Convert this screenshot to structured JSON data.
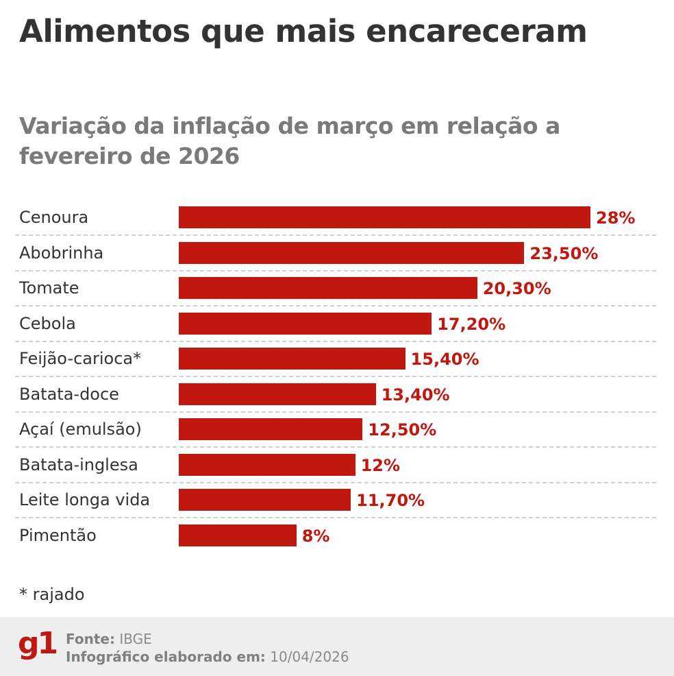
{
  "chart_data": {
    "type": "bar",
    "orientation": "horizontal",
    "title": "Alimentos que mais encareceram",
    "subtitle": "Variação da inflação de março em relação a fevereiro de 2026",
    "categories": [
      "Cenoura",
      "Abobrinha",
      "Tomate",
      "Cebola",
      "Feijão-carioca*",
      "Batata-doce",
      "Açaí (emulsão)",
      "Batata-inglesa",
      "Leite longa vida",
      "Pimentão"
    ],
    "values": [
      28,
      23.5,
      20.3,
      17.2,
      15.4,
      13.4,
      12.5,
      12,
      11.7,
      8
    ],
    "data_labels": [
      "28%",
      "23,50%",
      "20,30%",
      "17,20%",
      "15,40%",
      "13,40%",
      "12,50%",
      "12%",
      "11,70%",
      "8%"
    ],
    "unit": "%",
    "xlim": [
      0,
      28
    ],
    "grid": false,
    "bar_color": "#c0170f"
  },
  "note": "*  rajado",
  "footer": {
    "logo": "g1",
    "source_label": "Fonte:",
    "source_value": "IBGE",
    "date_label": "Infográfico elaborado em:",
    "date_value": "10/04/2026"
  }
}
